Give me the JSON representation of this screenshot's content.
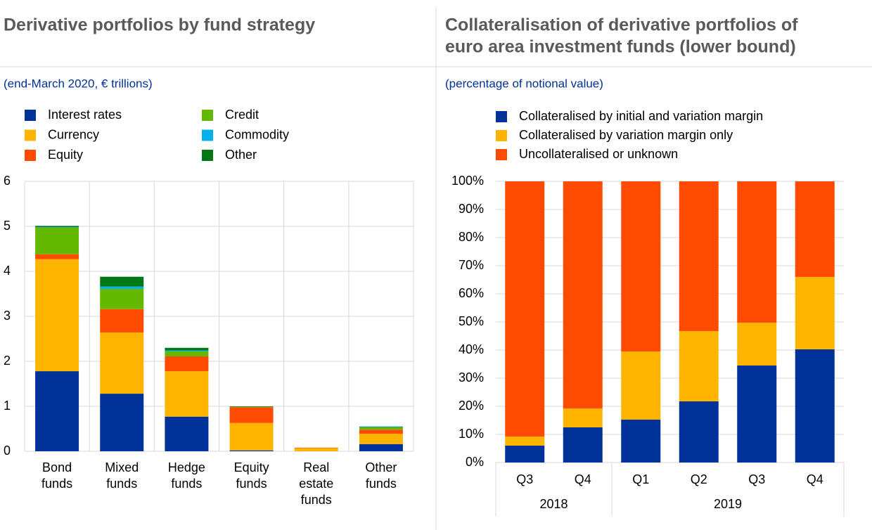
{
  "chart_data": [
    {
      "type": "bar",
      "stacked": true,
      "title": "Derivative portfolios by fund strategy",
      "subtitle": "(end-March 2020, € trillions)",
      "categories": [
        [
          "Bond",
          "funds"
        ],
        [
          "Mixed",
          "funds"
        ],
        [
          "Hedge",
          "funds"
        ],
        [
          "Equity",
          "funds"
        ],
        [
          "Real",
          "estate",
          "funds"
        ],
        [
          "Other",
          "funds"
        ]
      ],
      "series": [
        {
          "name": "Interest rates",
          "color": "#003299",
          "values": [
            1.78,
            1.28,
            0.77,
            0.02,
            0,
            0.16
          ]
        },
        {
          "name": "Currency",
          "color": "#ffb400",
          "values": [
            2.49,
            1.36,
            1.01,
            0.61,
            0.07,
            0.23
          ]
        },
        {
          "name": "Equity",
          "color": "#ff4b00",
          "values": [
            0.11,
            0.52,
            0.33,
            0.35,
            0.01,
            0.09
          ]
        },
        {
          "name": "Credit",
          "color": "#65b800",
          "values": [
            0.59,
            0.45,
            0.11,
            0.01,
            0,
            0.05
          ]
        },
        {
          "name": "Commodity",
          "color": "#00b1ea",
          "values": [
            0.01,
            0.05,
            0.02,
            0,
            0,
            0.01
          ]
        },
        {
          "name": "Other",
          "color": "#007816",
          "values": [
            0.03,
            0.22,
            0.06,
            0.01,
            0,
            0.01
          ]
        }
      ],
      "ylim": [
        0,
        6
      ],
      "yticks": [
        0,
        1,
        2,
        3,
        4,
        5,
        6
      ],
      "grid": true
    },
    {
      "type": "bar",
      "stacked": true,
      "title": [
        "Collateralisation of derivative portfolios of",
        "euro area investment funds (lower bound)"
      ],
      "subtitle": "(percentage of notional value)",
      "groups": [
        {
          "label": "2018",
          "categories": [
            "Q3",
            "Q4"
          ]
        },
        {
          "label": "2019",
          "categories": [
            "Q1",
            "Q2",
            "Q3",
            "Q4"
          ]
        }
      ],
      "series": [
        {
          "name": "Collateralised by initial and variation margin",
          "color": "#003299",
          "values": [
            6,
            12.5,
            15.25,
            21.75,
            34.5,
            40.25
          ]
        },
        {
          "name": "Collateralised by variation margin only",
          "color": "#ffb400",
          "values": [
            3.25,
            6.75,
            24.25,
            25,
            15.25,
            25.75
          ]
        },
        {
          "name": "Uncollateralised or unknown",
          "color": "#ff4b00",
          "values": [
            90.75,
            80.75,
            60.5,
            53.25,
            50.25,
            34
          ]
        }
      ],
      "ylim": [
        0,
        100
      ],
      "yticks": [
        {
          "value": 0,
          "label": "0%"
        },
        {
          "value": 10,
          "label": "10%"
        },
        {
          "value": 20,
          "label": "20%"
        },
        {
          "value": 30,
          "label": "30%"
        },
        {
          "value": 40,
          "label": "40%"
        },
        {
          "value": 50,
          "label": "50%"
        },
        {
          "value": 60,
          "label": "60%"
        },
        {
          "value": 70,
          "label": "70%"
        },
        {
          "value": 80,
          "label": "80%"
        },
        {
          "value": 90,
          "label": "90%"
        },
        {
          "value": 100,
          "label": "100%"
        }
      ],
      "grid": true
    }
  ]
}
